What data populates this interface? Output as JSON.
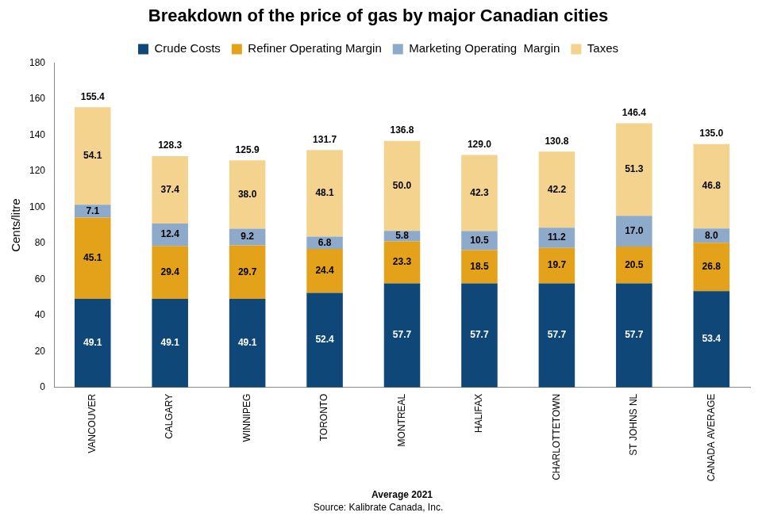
{
  "chart_data": {
    "type": "bar",
    "title": "Breakdown of the price of gas by major Canadian cities",
    "x_label": "Average 2021",
    "y_label": "Cents/litre",
    "source": "Source: Kalibrate Canada, Inc.",
    "categories": [
      "VANCOUVER",
      "CALGARY",
      "WINNIPEG",
      "TORONTO",
      "MONTREAL",
      "HALIFAX",
      "CHARLOTTETOWN",
      "ST JOHNS NL",
      "CANADA AVERAGE"
    ],
    "series": [
      {
        "name": "Crude Costs",
        "color": "#0e4778",
        "values": [
          49.1,
          49.1,
          49.1,
          52.4,
          57.7,
          57.7,
          57.7,
          57.7,
          53.4
        ],
        "value_labels": [
          "49.1",
          "49.1",
          "49.1",
          "52.4",
          "57.7",
          "57.7",
          "57.7",
          "57.7",
          "53.4"
        ]
      },
      {
        "name": "Refiner Operating Margin",
        "color": "#e3a21a",
        "values": [
          45.1,
          29.4,
          29.7,
          24.4,
          23.3,
          18.5,
          19.7,
          20.5,
          26.8
        ],
        "value_labels": [
          "45.1",
          "29.4",
          "29.7",
          "24.4",
          "23.3",
          "18.5",
          "19.7",
          "20.5",
          "26.8"
        ]
      },
      {
        "name": "Marketing Operating  Margin",
        "color": "#8eaacb",
        "values": [
          7.1,
          12.4,
          9.2,
          6.8,
          5.8,
          10.5,
          11.2,
          17.0,
          8.0
        ],
        "value_labels": [
          "7.1",
          "12.4",
          "9.2",
          "6.8",
          "5.8",
          "10.5",
          "11.2",
          "17.0",
          "8.0"
        ]
      },
      {
        "name": "Taxes",
        "color": "#f4d38f",
        "values": [
          54.1,
          37.4,
          38.0,
          48.1,
          50.0,
          42.3,
          42.2,
          51.3,
          46.8
        ],
        "value_labels": [
          "54.1",
          "37.4",
          "38.0",
          "48.1",
          "50.0",
          "42.3",
          "42.2",
          "51.3",
          "46.8"
        ]
      }
    ],
    "totals": [
      155.4,
      128.3,
      125.9,
      131.7,
      136.8,
      129.0,
      130.8,
      146.4,
      135.0
    ],
    "total_labels": [
      "155.4",
      "128.3",
      "125.9",
      "131.7",
      "136.8",
      "129.0",
      "130.8",
      "146.4",
      "135.0"
    ],
    "ylim": [
      0,
      180
    ],
    "yticks": [
      0,
      20,
      40,
      60,
      80,
      100,
      120,
      140,
      160,
      180
    ],
    "stacked": true,
    "data_labels": true,
    "legend": "top",
    "grid": false
  }
}
